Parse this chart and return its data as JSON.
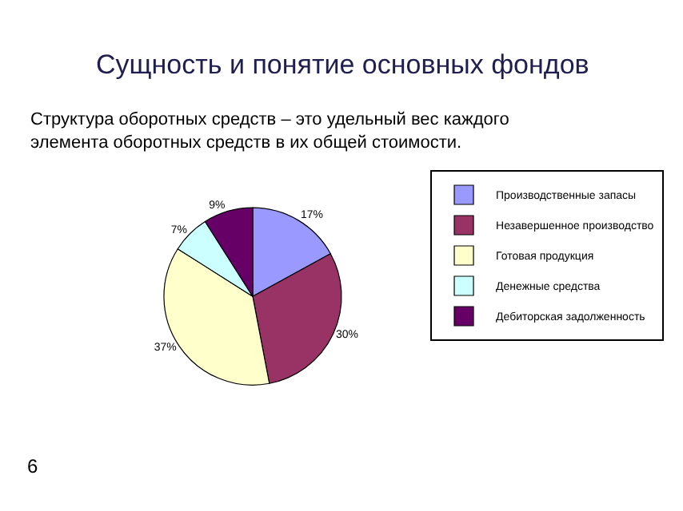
{
  "chart_data": {
    "type": "pie",
    "title": "Сущность и понятие основных фондов",
    "subtitle": "Структура оборотных средств – это удельный вес каждого элемента оборотных средств в их общей стоимости.",
    "categories": [
      "Производственные запасы",
      "Незавершенное производство",
      "Готовая продукция",
      "Денежные средства",
      "Дебиторская задолженность"
    ],
    "values": [
      17,
      30,
      37,
      7,
      9
    ],
    "value_labels": [
      "17%",
      "30%",
      "37%",
      "7%",
      "9%"
    ],
    "colors": [
      "#9999ff",
      "#993366",
      "#ffffcc",
      "#ccffff",
      "#660066"
    ],
    "legend": "right",
    "annotations": [
      "6"
    ]
  }
}
